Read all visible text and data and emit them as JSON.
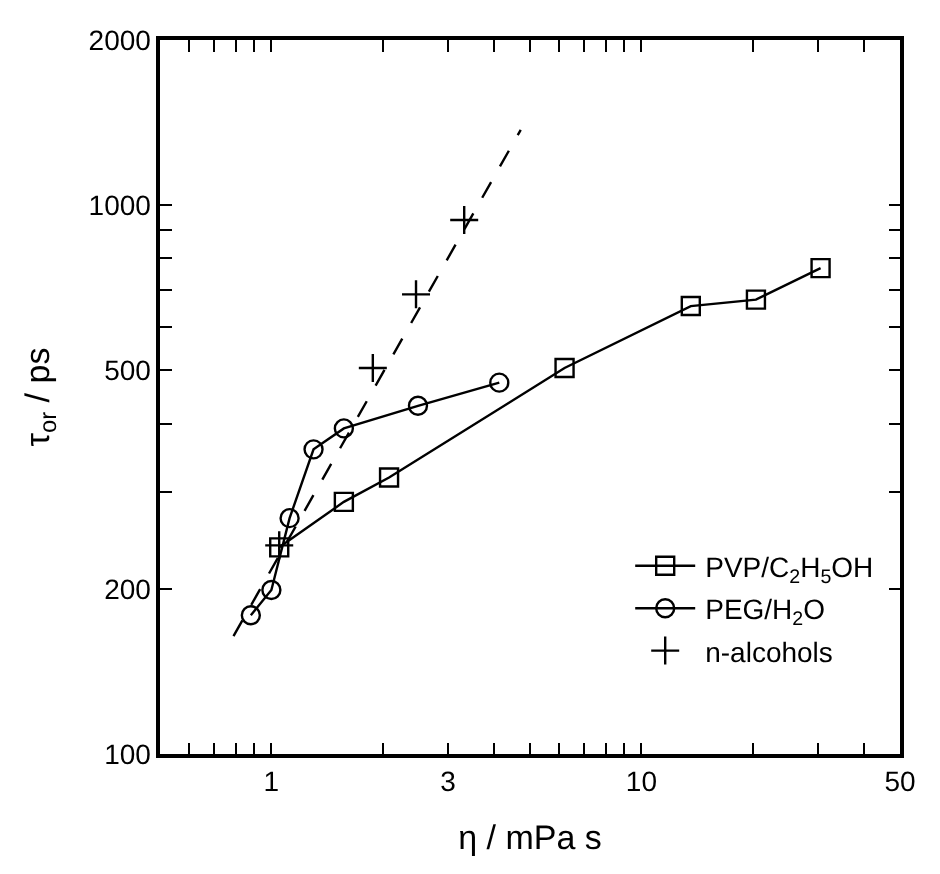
{
  "chart_data": {
    "type": "line",
    "xlabel": "η / mPa s",
    "ylabel": "τ$_{or}$ / ps",
    "log": "xy",
    "legend": "bottom right",
    "xlim": [
      0.5,
      50
    ],
    "ylim": [
      100,
      2000
    ],
    "xticks": [
      {
        "value": 0.6,
        "label": null
      },
      {
        "value": 0.7,
        "label": null
      },
      {
        "value": 0.8,
        "label": null
      },
      {
        "value": 0.9,
        "label": null
      },
      1,
      {
        "value": 2,
        "label": null
      },
      3,
      {
        "value": 4,
        "label": null
      },
      {
        "value": 5,
        "label": null
      },
      {
        "value": 6,
        "label": null
      },
      {
        "value": 7,
        "label": null
      },
      {
        "value": 8,
        "label": null
      },
      {
        "value": 9,
        "label": null
      },
      10,
      {
        "value": 20,
        "label": null
      },
      {
        "value": 30,
        "label": null
      },
      {
        "value": 40,
        "label": null
      },
      50
    ],
    "yticks": [
      100,
      200,
      {
        "value": 300,
        "label": null
      },
      {
        "value": 400,
        "label": null
      },
      500,
      {
        "value": 600,
        "label": null
      },
      {
        "value": 700,
        "label": null
      },
      {
        "value": 800,
        "label": null
      },
      {
        "value": 900,
        "label": null
      },
      1000,
      2000
    ],
    "series": [
      {
        "name": "PVP/C$_{2}$H$_{5}$OH",
        "type": "line",
        "marker": "square",
        "line_style": "solid",
        "color": "#000000",
        "x": [
          1.05,
          1.57,
          2.08,
          6.2,
          13.6,
          20.4,
          30.5
        ],
        "values": [
          238,
          288,
          319,
          505,
          655,
          673,
          768
        ]
      },
      {
        "name": "PEG/H$_{2}$O",
        "type": "line",
        "marker": "circle",
        "line_style": "solid",
        "color": "#000000",
        "x": [
          0.88,
          1.0,
          1.12,
          1.3,
          1.57,
          2.49,
          4.13
        ],
        "values": [
          179,
          199,
          269,
          359,
          392,
          431,
          475
        ]
      },
      {
        "name": "n-alcohols",
        "type": "scatter",
        "marker": "cross",
        "color": "#000000",
        "x": [
          1.05,
          1.88,
          2.46,
          3.32
        ],
        "values": [
          240,
          505,
          688,
          940
        ]
      },
      {
        "marker": "none",
        "line_style": "dashed",
        "color": "#000000",
        "x": [
          0.79,
          4.72
        ],
        "values": [
          164,
          1372
        ]
      }
    ]
  }
}
